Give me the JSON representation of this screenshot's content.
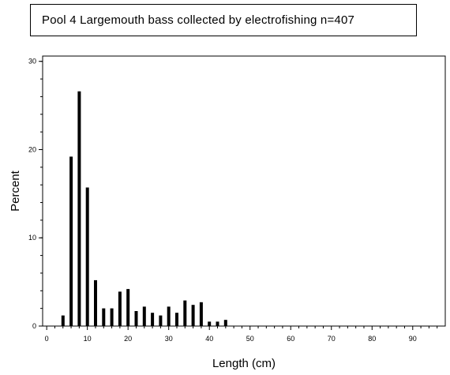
{
  "chart_data": {
    "type": "bar",
    "title": "Pool 4 Largemouth bass collected by electrofishing n=407",
    "xlabel": "Length (cm)",
    "ylabel": "Percent",
    "xlim": [
      -1,
      98
    ],
    "ylim": [
      0,
      30.6
    ],
    "x_ticks": [
      0,
      10,
      20,
      30,
      40,
      50,
      60,
      70,
      80,
      90
    ],
    "y_ticks": [
      0,
      10,
      20,
      30
    ],
    "grid": false,
    "categories": [
      4,
      6,
      8,
      10,
      12,
      14,
      16,
      18,
      20,
      22,
      24,
      26,
      28,
      30,
      32,
      34,
      36,
      38,
      40,
      42,
      44
    ],
    "values": [
      1.2,
      19.2,
      26.6,
      15.7,
      5.2,
      2.0,
      2.0,
      3.9,
      4.2,
      1.7,
      2.2,
      1.5,
      1.2,
      2.2,
      1.5,
      2.9,
      2.4,
      2.7,
      0.5,
      0.5,
      0.7
    ]
  }
}
